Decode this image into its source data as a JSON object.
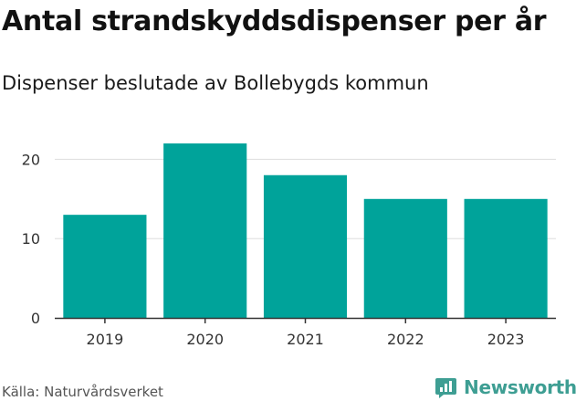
{
  "header": {
    "title": "Antal strandskyddsdispenser per år",
    "subtitle": "Dispenser beslutade av Bollebygds kommun"
  },
  "footer": {
    "source": "Källa: Naturvårdsverket",
    "brand": "Newsworthy"
  },
  "colors": {
    "bar": "#00a39a",
    "grid": "#dddddd",
    "axis": "#333333",
    "tick_label": "#333333",
    "brand": "#3e9e93"
  },
  "chart_data": {
    "type": "bar",
    "title": "Antal strandskyddsdispenser per år",
    "subtitle": "Dispenser beslutade av Bollebygds kommun",
    "categories": [
      "2019",
      "2020",
      "2021",
      "2022",
      "2023"
    ],
    "values": [
      13,
      22,
      18,
      15,
      15
    ],
    "xlabel": "",
    "ylabel": "",
    "ylim": [
      0,
      25
    ],
    "yticks": [
      0,
      10,
      20
    ],
    "grid": true,
    "legend": "none"
  }
}
